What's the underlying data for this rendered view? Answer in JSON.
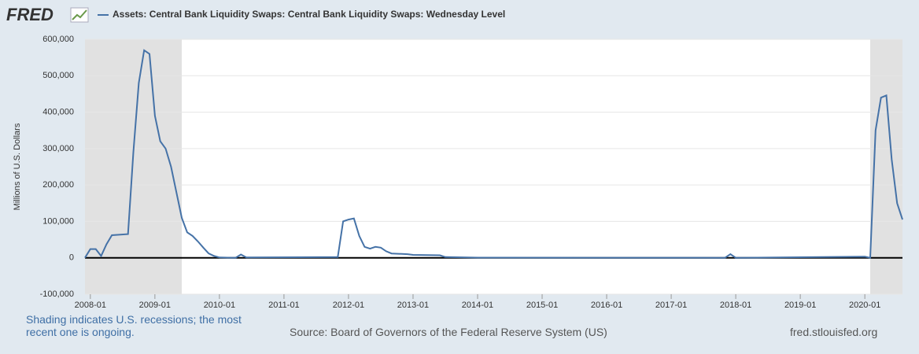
{
  "logo": "FRED",
  "chart_data": {
    "type": "line",
    "y_label": "Millions of U.S. Dollars",
    "x": [
      "2007-12",
      "2008-01",
      "2008-02",
      "2008-03",
      "2008-04",
      "2008-05",
      "2008-08",
      "2008-09",
      "2008-10",
      "2008-11",
      "2008-12",
      "2009-01",
      "2009-02",
      "2009-03",
      "2009-04",
      "2009-05",
      "2009-06",
      "2009-07",
      "2009-08",
      "2009-09",
      "2009-10",
      "2009-11",
      "2009-12",
      "2010-01",
      "2010-04",
      "2010-05",
      "2010-06",
      "2011-11",
      "2011-12",
      "2012-01",
      "2012-02",
      "2012-03",
      "2012-04",
      "2012-05",
      "2012-06",
      "2012-07",
      "2012-08",
      "2012-09",
      "2012-12",
      "2013-01",
      "2013-06",
      "2013-07",
      "2014-01",
      "2017-11",
      "2017-12",
      "2018-01",
      "2020-01",
      "2020-02",
      "2020-03",
      "2020-04",
      "2020-05",
      "2020-06",
      "2020-07",
      "2020-08"
    ],
    "series": [
      {
        "name": "Assets: Central Bank Liquidity Swaps: Central Bank Liquidity Swaps: Wednesday Level",
        "color": "#4572a7",
        "values": [
          0,
          24000,
          24000,
          5000,
          37000,
          62000,
          65000,
          290000,
          480000,
          570000,
          560000,
          390000,
          320000,
          300000,
          250000,
          180000,
          110000,
          70000,
          60000,
          45000,
          28000,
          12000,
          5000,
          1000,
          0,
          9000,
          1000,
          2000,
          100000,
          105000,
          108000,
          60000,
          30000,
          25000,
          30000,
          28000,
          18000,
          12000,
          10000,
          8000,
          7000,
          2000,
          500,
          0,
          10000,
          0,
          3000,
          0,
          350000,
          440000,
          446000,
          270000,
          150000,
          105000
        ]
      }
    ],
    "xlim": [
      "2007-12",
      "2020-08"
    ],
    "xticks": [
      "2008-01",
      "2009-01",
      "2010-01",
      "2011-01",
      "2012-01",
      "2013-01",
      "2014-01",
      "2015-01",
      "2016-01",
      "2017-01",
      "2018-01",
      "2019-01",
      "2020-01"
    ],
    "ylim": [
      -100000,
      600000
    ],
    "yticks": [
      {
        "value": -100000,
        "label": "-100,000"
      },
      0,
      {
        "value": 100000,
        "label": "100,000"
      },
      {
        "value": 200000,
        "label": "200,000"
      },
      {
        "value": 300000,
        "label": "300,000"
      },
      {
        "value": 400000,
        "label": "400,000"
      },
      {
        "value": 500000,
        "label": "500,000"
      },
      {
        "value": 600000,
        "label": "600,000"
      }
    ],
    "grid": true,
    "recessions": [
      [
        "2007-12",
        "2009-06"
      ],
      [
        "2020-02",
        "2020-08"
      ]
    ],
    "recession_color": "#e1e1e1"
  },
  "footer": {
    "note": "Shading indicates U.S. recessions; the most recent one is ongoing.",
    "source": "Source: Board of Governors of the Federal Reserve System (US)",
    "site": "fred.stlouisfed.org"
  }
}
